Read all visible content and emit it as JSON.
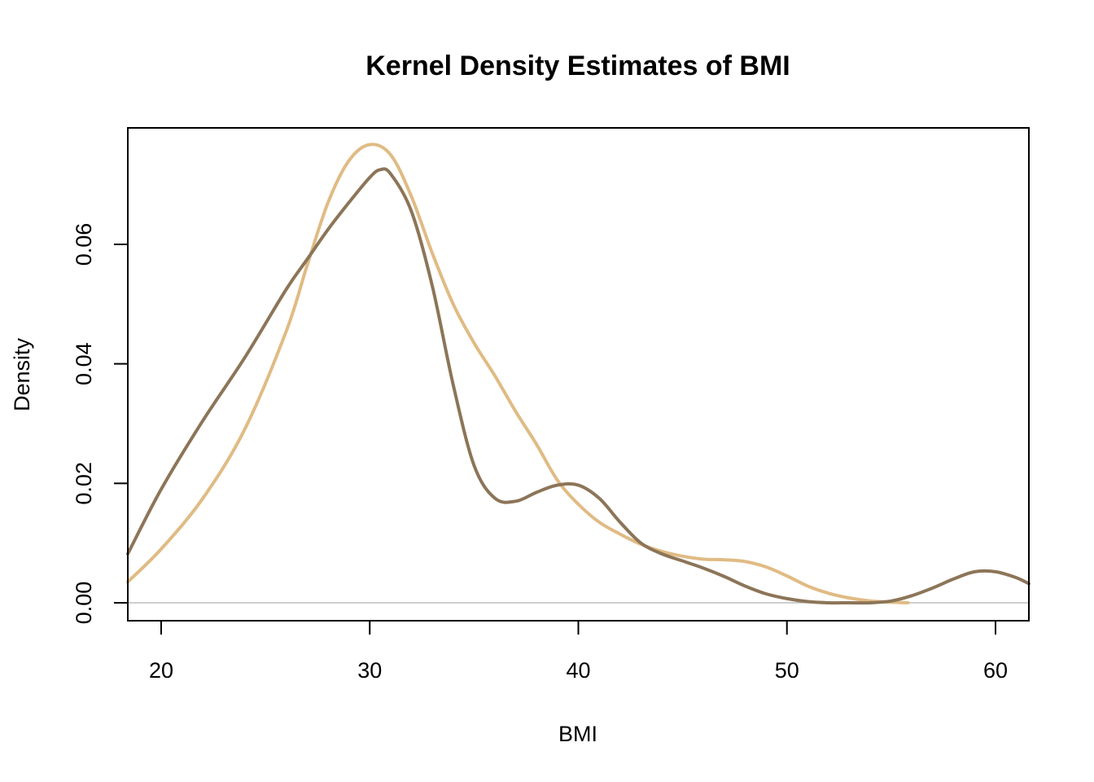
{
  "chart_data": {
    "type": "line",
    "title": "Kernel Density Estimates of BMI",
    "xlabel": "BMI",
    "ylabel": "Density",
    "xlim": [
      18.4,
      61.6
    ],
    "ylim": [
      -0.003,
      0.0795
    ],
    "xticks": [
      20,
      30,
      40,
      50,
      60
    ],
    "xtick_labels": [
      "20",
      "30",
      "40",
      "50",
      "60"
    ],
    "yticks": [
      0,
      0.02,
      0.04,
      0.06
    ],
    "ytick_labels": [
      "0.00",
      "0.02",
      "0.04",
      "0.06"
    ],
    "grid": false,
    "baseline_y": 0,
    "baseline_color": "#bebebe",
    "series": [
      {
        "color": "#e0bb84",
        "x": [
          18.4,
          20,
          22,
          24,
          26,
          27,
          28,
          29,
          30,
          31,
          32,
          33,
          34,
          35,
          36,
          37,
          38,
          39,
          40,
          41,
          42,
          43,
          44,
          45,
          46,
          47,
          48,
          49,
          50,
          51,
          52,
          53,
          54,
          55,
          55.8
        ],
        "y": [
          0.0035,
          0.009,
          0.0175,
          0.029,
          0.0455,
          0.0565,
          0.067,
          0.074,
          0.0767,
          0.075,
          0.068,
          0.0585,
          0.05,
          0.0435,
          0.038,
          0.032,
          0.0265,
          0.0205,
          0.0165,
          0.0135,
          0.0115,
          0.0098,
          0.0086,
          0.0078,
          0.0073,
          0.0072,
          0.0069,
          0.006,
          0.0045,
          0.0028,
          0.0016,
          0.0008,
          0.0003,
          0.0001,
          0.0
        ]
      },
      {
        "color": "#8c7558",
        "x": [
          18.4,
          20,
          22,
          24,
          26,
          27,
          28,
          29,
          30,
          30.5,
          31,
          32,
          33,
          34,
          35,
          36,
          37,
          38,
          39,
          40,
          41,
          42,
          43,
          44,
          45,
          46,
          47,
          48,
          49,
          50,
          51,
          52,
          53,
          54,
          55,
          56,
          57,
          58,
          59,
          60,
          61,
          61.6
        ],
        "y": [
          0.0082,
          0.019,
          0.0305,
          0.041,
          0.0525,
          0.0575,
          0.0625,
          0.067,
          0.0712,
          0.0725,
          0.0718,
          0.0655,
          0.053,
          0.0365,
          0.023,
          0.0175,
          0.017,
          0.0185,
          0.0197,
          0.0197,
          0.0175,
          0.0135,
          0.01,
          0.0082,
          0.007,
          0.0058,
          0.0044,
          0.0028,
          0.0015,
          0.0007,
          0.0002,
          0.0,
          0.0,
          0.0,
          0.0003,
          0.0012,
          0.0025,
          0.004,
          0.0052,
          0.0052,
          0.0042,
          0.0032
        ]
      }
    ]
  }
}
